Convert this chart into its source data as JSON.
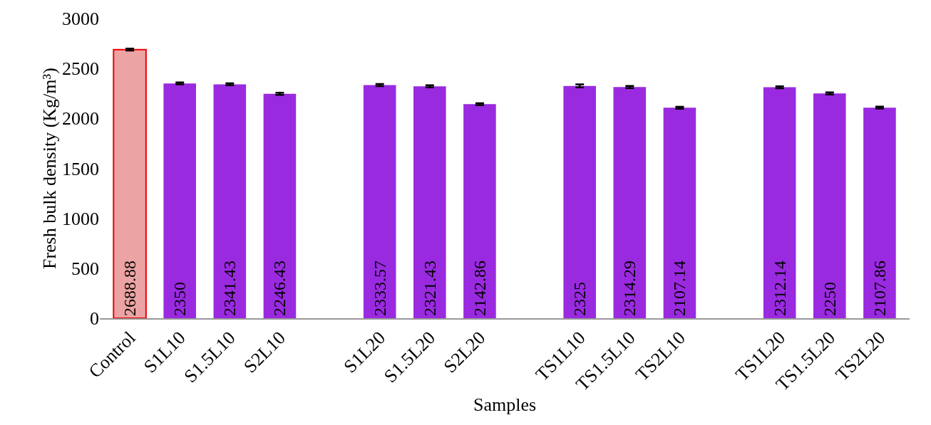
{
  "chart_data": {
    "type": "bar",
    "xlabel": "Samples",
    "ylabel": "Fresh bulk density (Kg/m³)",
    "categories": [
      "Control",
      "S1L10",
      "S1.5L10",
      "S2L10",
      null,
      "S1L20",
      "S1.5L20",
      "S2L20",
      null,
      "TS1L10",
      "TS1.5L10",
      "TS2L10",
      null,
      "TS1L20",
      "TS1.5L20",
      "TS2L20"
    ],
    "values": [
      2688.88,
      2350,
      2341.43,
      2246.43,
      null,
      2333.57,
      2321.43,
      2142.86,
      null,
      2325,
      2314.29,
      2107.14,
      null,
      2312.14,
      2250,
      2107.86
    ],
    "errors": [
      10,
      10,
      10,
      10,
      null,
      10,
      10,
      10,
      null,
      15,
      10,
      10,
      null,
      10,
      10,
      10
    ],
    "colors": [
      "#eba3a3",
      "#9a2ae0",
      "#9a2ae0",
      "#9a2ae0",
      null,
      "#9a2ae0",
      "#9a2ae0",
      "#9a2ae0",
      null,
      "#9a2ae0",
      "#9a2ae0",
      "#9a2ae0",
      null,
      "#9a2ae0",
      "#9a2ae0",
      "#9a2ae0"
    ],
    "ylim": [
      0,
      3000
    ],
    "yticks": [
      0,
      500,
      1000,
      1500,
      2000,
      2500,
      3000
    ],
    "data_labels": true,
    "grid": false
  }
}
